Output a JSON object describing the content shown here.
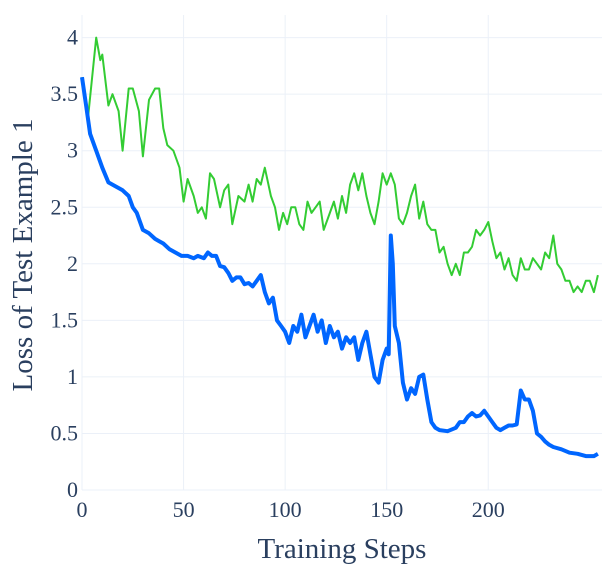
{
  "chart_data": {
    "type": "line",
    "title": "",
    "xlabel": "Training Steps",
    "ylabel": "Loss of Test Example 1",
    "xlim": [
      0,
      256
    ],
    "ylim": [
      0,
      4.2
    ],
    "grid": true,
    "x_ticks": [
      0,
      50,
      100,
      150,
      200
    ],
    "y_ticks": [
      0,
      0.5,
      1,
      1.5,
      2,
      2.5,
      3,
      3.5,
      4
    ],
    "y_tick_labels": [
      "0",
      "0.5",
      "1",
      "1.5",
      "2",
      "2.5",
      "3",
      "3.5",
      "4"
    ],
    "series": [
      {
        "color": "#33cc33",
        "x": [
          0,
          3,
          7,
          9,
          10,
          13,
          15,
          18,
          20,
          23,
          25,
          28,
          30,
          33,
          36,
          38,
          40,
          42,
          45,
          48,
          50,
          52,
          55,
          57,
          59,
          61,
          63,
          65,
          68,
          70,
          72,
          74,
          77,
          80,
          82,
          84,
          86,
          88,
          90,
          93,
          95,
          97,
          99,
          101,
          103,
          105,
          107,
          109,
          111,
          113,
          115,
          117,
          119,
          121,
          124,
          126,
          128,
          130,
          132,
          134,
          136,
          138,
          140,
          142,
          144,
          146,
          148,
          150,
          152,
          154,
          156,
          158,
          160,
          162,
          164,
          166,
          168,
          170,
          172,
          174,
          176,
          178,
          180,
          182,
          184,
          186,
          188,
          190,
          192,
          194,
          196,
          198,
          200,
          202,
          204,
          206,
          208,
          210,
          212,
          214,
          216,
          218,
          220,
          222,
          224,
          226,
          228,
          230,
          232,
          234,
          236,
          238,
          240,
          242,
          244,
          246,
          248,
          250,
          252,
          254
        ],
        "y": [
          3.65,
          3.3,
          4.0,
          3.8,
          3.85,
          3.4,
          3.5,
          3.35,
          3.0,
          3.55,
          3.55,
          3.35,
          2.95,
          3.45,
          3.55,
          3.55,
          3.2,
          3.05,
          3.0,
          2.85,
          2.55,
          2.75,
          2.6,
          2.45,
          2.5,
          2.4,
          2.8,
          2.75,
          2.5,
          2.65,
          2.7,
          2.35,
          2.6,
          2.55,
          2.7,
          2.55,
          2.75,
          2.7,
          2.85,
          2.6,
          2.5,
          2.3,
          2.45,
          2.35,
          2.5,
          2.5,
          2.35,
          2.3,
          2.55,
          2.45,
          2.5,
          2.55,
          2.3,
          2.4,
          2.55,
          2.4,
          2.6,
          2.45,
          2.7,
          2.8,
          2.65,
          2.8,
          2.6,
          2.45,
          2.35,
          2.55,
          2.8,
          2.7,
          2.8,
          2.7,
          2.4,
          2.35,
          2.45,
          2.6,
          2.7,
          2.4,
          2.55,
          2.35,
          2.3,
          2.3,
          2.1,
          2.15,
          2.0,
          1.9,
          2.0,
          1.9,
          2.1,
          2.1,
          2.15,
          2.3,
          2.25,
          2.3,
          2.37,
          2.2,
          2.05,
          2.1,
          1.95,
          2.05,
          1.9,
          1.85,
          2.05,
          1.95,
          1.95,
          2.05,
          2.0,
          1.95,
          2.1,
          2.05,
          2.25,
          2.0,
          1.95,
          1.85,
          1.85,
          1.75,
          1.8,
          1.75,
          1.85,
          1.85,
          1.75,
          1.9
        ]
      },
      {
        "color": "#0066ff",
        "x": [
          0,
          2,
          4,
          7,
          10,
          13,
          17,
          20,
          23,
          25,
          27,
          30,
          33,
          36,
          38,
          40,
          43,
          46,
          49,
          52,
          55,
          57,
          60,
          62,
          64,
          66,
          68,
          70,
          72,
          74,
          76,
          78,
          80,
          82,
          84,
          86,
          88,
          90,
          92,
          94,
          96,
          98,
          100,
          102,
          104,
          106,
          108,
          110,
          112,
          114,
          116,
          118,
          120,
          122,
          124,
          126,
          128,
          130,
          132,
          134,
          136,
          138,
          140,
          142,
          144,
          146,
          148,
          150,
          151,
          152,
          153,
          154,
          156,
          158,
          160,
          162,
          164,
          166,
          168,
          170,
          172,
          174,
          176,
          180,
          184,
          186,
          188,
          190,
          192,
          194,
          196,
          198,
          200,
          202,
          204,
          206,
          208,
          210,
          212,
          214,
          216,
          218,
          220,
          222,
          224,
          226,
          228,
          230,
          232,
          236,
          240,
          244,
          248,
          252,
          254
        ],
        "y": [
          3.65,
          3.4,
          3.15,
          3.0,
          2.85,
          2.72,
          2.68,
          2.65,
          2.6,
          2.5,
          2.45,
          2.3,
          2.27,
          2.22,
          2.2,
          2.18,
          2.13,
          2.1,
          2.07,
          2.07,
          2.05,
          2.07,
          2.05,
          2.1,
          2.07,
          2.07,
          1.98,
          1.97,
          1.92,
          1.85,
          1.88,
          1.88,
          1.82,
          1.83,
          1.8,
          1.85,
          1.9,
          1.75,
          1.65,
          1.7,
          1.5,
          1.45,
          1.4,
          1.3,
          1.45,
          1.4,
          1.55,
          1.35,
          1.45,
          1.55,
          1.4,
          1.5,
          1.3,
          1.45,
          1.35,
          1.4,
          1.25,
          1.35,
          1.3,
          1.35,
          1.15,
          1.3,
          1.4,
          1.2,
          1.0,
          0.95,
          1.15,
          1.25,
          1.2,
          2.25,
          2.0,
          1.45,
          1.3,
          0.95,
          0.8,
          0.9,
          0.85,
          1.0,
          1.02,
          0.8,
          0.6,
          0.55,
          0.53,
          0.52,
          0.55,
          0.6,
          0.6,
          0.65,
          0.68,
          0.65,
          0.66,
          0.7,
          0.65,
          0.6,
          0.55,
          0.53,
          0.55,
          0.57,
          0.57,
          0.58,
          0.88,
          0.8,
          0.8,
          0.7,
          0.5,
          0.47,
          0.43,
          0.4,
          0.38,
          0.36,
          0.33,
          0.32,
          0.3,
          0.3,
          0.32
        ]
      }
    ]
  }
}
